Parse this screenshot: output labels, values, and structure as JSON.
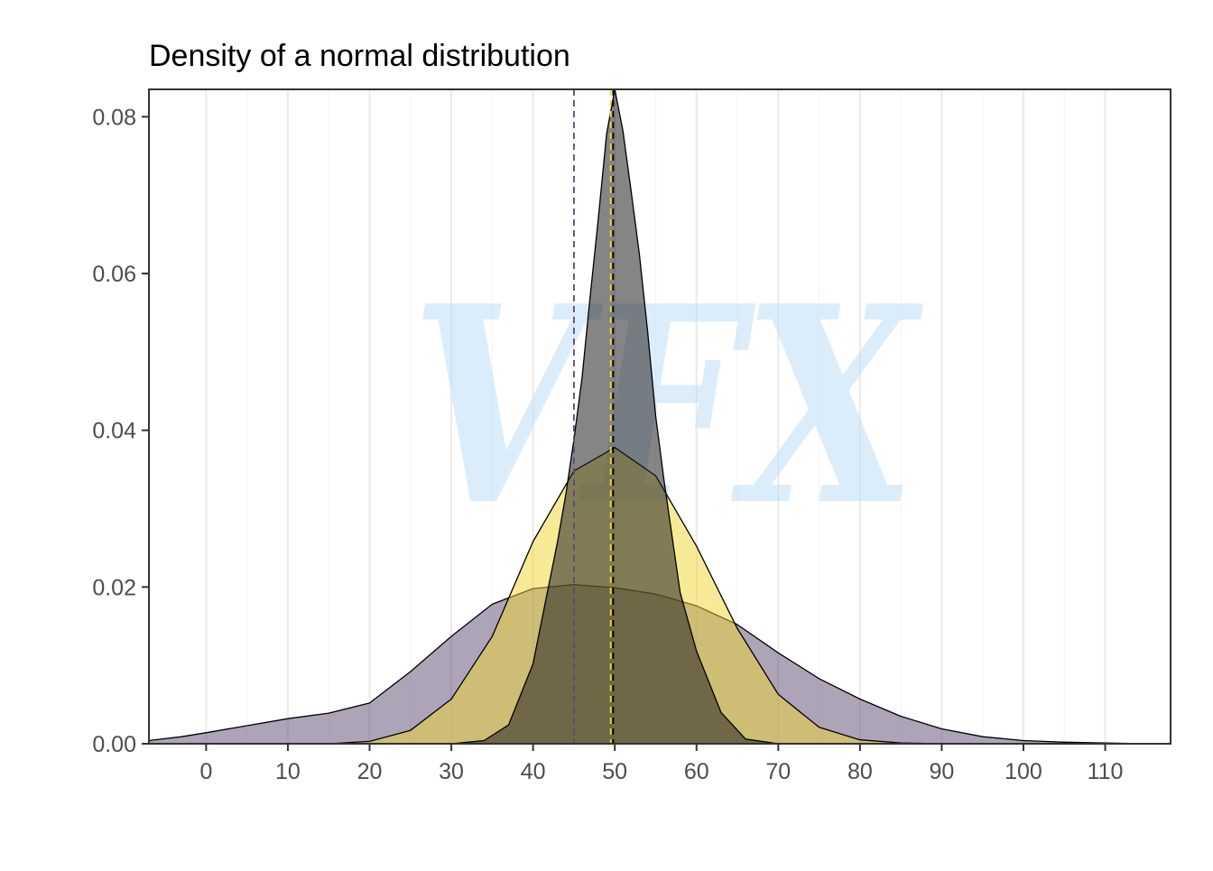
{
  "chart_data": {
    "type": "area",
    "title": "Density of a normal distribution",
    "xlabel": "",
    "ylabel": "",
    "xlim": [
      -7,
      118
    ],
    "ylim": [
      0,
      0.0835
    ],
    "x_ticks": [
      0,
      10,
      20,
      30,
      40,
      50,
      60,
      70,
      80,
      90,
      100,
      110
    ],
    "y_ticks": [
      0,
      0.02,
      0.04,
      0.06,
      0.08
    ],
    "y_tick_labels": [
      "0.00",
      "0.02",
      "0.04",
      "0.06",
      "0.08"
    ],
    "grid": "vertical major and minor lines",
    "legend": "none",
    "watermark": "VFX",
    "series": [
      {
        "fill": "#5c4a72",
        "fill_opacity": 0.5,
        "x": [
          -7,
          -3,
          0,
          5,
          10,
          15,
          20,
          25,
          30,
          35,
          40,
          45,
          50,
          55,
          60,
          65,
          70,
          75,
          80,
          85,
          90,
          95,
          100,
          105,
          110,
          115,
          118
        ],
        "y": [
          0.0004,
          0.0009,
          0.0014,
          0.0023,
          0.0032,
          0.0039,
          0.0052,
          0.0092,
          0.0137,
          0.0178,
          0.0198,
          0.0203,
          0.0199,
          0.0191,
          0.0176,
          0.0152,
          0.0116,
          0.0083,
          0.0057,
          0.0035,
          0.0019,
          0.0009,
          0.0004,
          0.0002,
          0.0001,
          0.0,
          0.0
        ],
        "mean_line": 45,
        "mean_line_color": "#5c4a72"
      },
      {
        "fill": "#f0d630",
        "fill_opacity": 0.5,
        "x": [
          15,
          20,
          25,
          30,
          35,
          40,
          45,
          50,
          55,
          60,
          65,
          70,
          75,
          80,
          85,
          90
        ],
        "y": [
          0.0,
          0.0003,
          0.0017,
          0.0057,
          0.0137,
          0.0258,
          0.0348,
          0.0378,
          0.0342,
          0.0252,
          0.0147,
          0.0063,
          0.0021,
          0.0005,
          0.0001,
          0.0
        ],
        "mean_line": 49.5,
        "mean_line_color": "#f0d630"
      },
      {
        "fill": "#202020",
        "fill_opacity": 0.55,
        "x": [
          30,
          34,
          37,
          40,
          42,
          43,
          44,
          45,
          46,
          47,
          48,
          49,
          50,
          51,
          52,
          53,
          54,
          55,
          56,
          57,
          58,
          60,
          63,
          66,
          70
        ],
        "y": [
          0.0,
          0.0004,
          0.0024,
          0.0102,
          0.0206,
          0.0258,
          0.0318,
          0.0388,
          0.0468,
          0.0572,
          0.0672,
          0.0778,
          0.0835,
          0.0782,
          0.0705,
          0.0625,
          0.0528,
          0.0418,
          0.0338,
          0.0265,
          0.0193,
          0.0118,
          0.004,
          0.0006,
          0.0
        ],
        "mean_line": 49.8,
        "mean_line_color": "#000000"
      }
    ]
  }
}
